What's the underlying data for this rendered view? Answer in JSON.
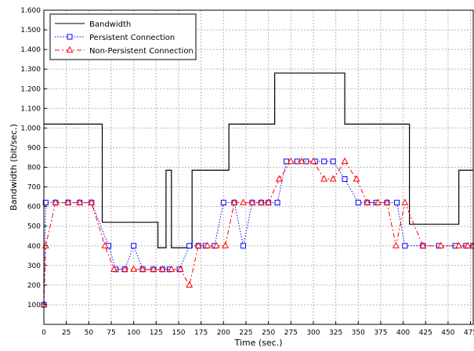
{
  "chart_data": {
    "type": "line",
    "xlabel": "Time (sec.)",
    "ylabel": "Bandwidth (bit/sec.)",
    "xlim": [
      0,
      478
    ],
    "ylim": [
      0,
      1600
    ],
    "x_ticks": [
      "0",
      "25",
      "50",
      "75",
      "100",
      "125",
      "150",
      "175",
      "200",
      "225",
      "250",
      "275",
      "300",
      "325",
      "350",
      "375",
      "400",
      "425",
      "450",
      "475"
    ],
    "x_tick_values": [
      0,
      25,
      50,
      75,
      100,
      125,
      150,
      175,
      200,
      225,
      250,
      275,
      300,
      325,
      350,
      375,
      400,
      425,
      450,
      475
    ],
    "y_ticks": [
      "100",
      "200",
      "300",
      "400",
      "500",
      "600",
      "700",
      "800",
      "900",
      "1.000",
      "1.100",
      "1.200",
      "1.300",
      "1.400",
      "1.500",
      "1.600"
    ],
    "y_tick_values": [
      100,
      200,
      300,
      400,
      500,
      600,
      700,
      800,
      900,
      1000,
      1100,
      1200,
      1300,
      1400,
      1500,
      1600
    ],
    "grid": true,
    "legend_position": "top-left",
    "series": [
      {
        "name": "Bandwidth",
        "color": "#000000",
        "style": "solid",
        "marker": "none",
        "x": [
          0,
          65,
          65,
          127,
          127,
          136,
          136,
          142,
          142,
          147,
          147,
          165,
          165,
          206,
          206,
          257,
          257,
          335,
          335,
          407,
          407,
          462,
          462,
          478
        ],
        "y": [
          1020,
          1020,
          520,
          520,
          390,
          390,
          785,
          785,
          390,
          390,
          390,
          390,
          785,
          785,
          1020,
          1020,
          1280,
          1280,
          1020,
          1020,
          510,
          510,
          785,
          785
        ]
      },
      {
        "name": "Persistent Connection",
        "color": "#0000ff",
        "style": "dotted",
        "marker": "square",
        "x": [
          0,
          2,
          13,
          27,
          40,
          53,
          72,
          80,
          90,
          100,
          110,
          122,
          132,
          140,
          151,
          162,
          172,
          180,
          190,
          200,
          212,
          222,
          232,
          242,
          250,
          260,
          270,
          282,
          292,
          302,
          312,
          322,
          335,
          350,
          360,
          370,
          382,
          393,
          402,
          422,
          440,
          458,
          470,
          478
        ],
        "y": [
          100,
          620,
          620,
          620,
          620,
          620,
          400,
          280,
          280,
          400,
          280,
          280,
          280,
          280,
          280,
          400,
          400,
          400,
          400,
          620,
          620,
          400,
          620,
          620,
          620,
          620,
          830,
          830,
          830,
          830,
          830,
          830,
          740,
          620,
          620,
          620,
          620,
          620,
          400,
          400,
          400,
          400,
          400,
          400
        ]
      },
      {
        "name": "Non-Persistent Connection",
        "color": "#ff0000",
        "style": "dashdot",
        "marker": "triangle",
        "x": [
          0,
          2,
          13,
          27,
          40,
          53,
          68,
          78,
          90,
          100,
          110,
          122,
          132,
          142,
          152,
          162,
          172,
          182,
          192,
          202,
          212,
          222,
          232,
          242,
          250,
          262,
          275,
          287,
          300,
          312,
          322,
          335,
          348,
          360,
          372,
          382,
          392,
          402,
          422,
          442,
          462,
          472,
          478
        ],
        "y": [
          100,
          400,
          620,
          620,
          620,
          620,
          400,
          280,
          280,
          280,
          280,
          280,
          280,
          280,
          280,
          200,
          400,
          400,
          400,
          400,
          620,
          620,
          620,
          620,
          620,
          740,
          830,
          830,
          830,
          740,
          740,
          830,
          740,
          620,
          620,
          620,
          400,
          620,
          400,
          400,
          400,
          400,
          400
        ]
      }
    ]
  }
}
